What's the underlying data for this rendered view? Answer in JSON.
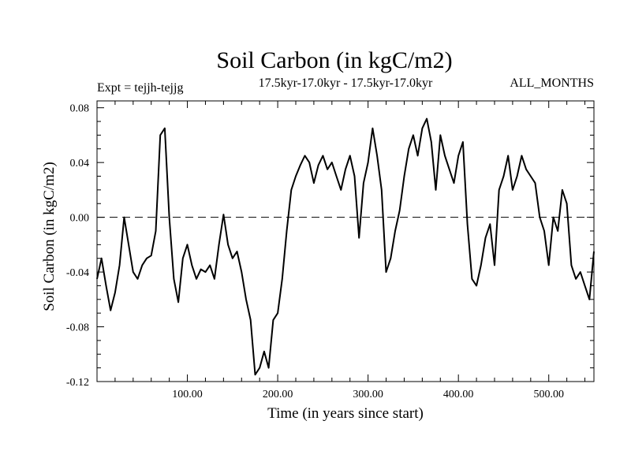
{
  "chart_data": {
    "type": "line",
    "title": "Soil Carbon (in kgC/m2)",
    "subtitle_left": "Expt = tejjh-tejjg",
    "subtitle_center": "17.5kyr-17.0kyr - 17.5kyr-17.0kyr",
    "subtitle_right": "ALL_MONTHS",
    "xlabel": "Time (in years since start)",
    "ylabel": "Soil Carbon (in kgC/m2)",
    "xlim": [
      0,
      550
    ],
    "ylim": [
      -0.12,
      0.085
    ],
    "x_ticks": [
      100,
      200,
      300,
      400,
      500
    ],
    "x_tick_labels": [
      "100.00",
      "200.00",
      "300.00",
      "400.00",
      "500.00"
    ],
    "y_ticks": [
      -0.12,
      -0.08,
      -0.04,
      0.0,
      0.04,
      0.08
    ],
    "y_tick_labels": [
      "-0.12",
      "-0.08",
      "-0.04",
      "0.00",
      "0.04",
      "0.08"
    ],
    "reference_line": {
      "y": 0.0,
      "style": "dashed"
    },
    "grid": false,
    "series": [
      {
        "x": [
          0,
          5,
          10,
          15,
          20,
          25,
          30,
          35,
          40,
          45,
          50,
          55,
          60,
          65,
          70,
          75,
          80,
          85,
          90,
          95,
          100,
          105,
          110,
          115,
          120,
          125,
          130,
          135,
          140,
          145,
          150,
          155,
          160,
          165,
          170,
          175,
          180,
          185,
          190,
          195,
          200,
          205,
          210,
          215,
          220,
          225,
          230,
          235,
          240,
          245,
          250,
          255,
          260,
          265,
          270,
          275,
          280,
          285,
          290,
          295,
          300,
          305,
          310,
          315,
          320,
          325,
          330,
          335,
          340,
          345,
          350,
          355,
          360,
          365,
          370,
          375,
          380,
          385,
          390,
          395,
          400,
          405,
          410,
          415,
          420,
          425,
          430,
          435,
          440,
          445,
          450,
          455,
          460,
          465,
          470,
          475,
          480,
          485,
          490,
          495,
          500,
          505,
          510,
          515,
          520,
          525,
          530,
          535,
          540,
          545,
          550
        ],
        "y": [
          -0.045,
          -0.03,
          -0.05,
          -0.068,
          -0.055,
          -0.035,
          0.0,
          -0.02,
          -0.04,
          -0.045,
          -0.035,
          -0.03,
          -0.028,
          -0.01,
          0.06,
          0.065,
          0.0,
          -0.045,
          -0.062,
          -0.03,
          -0.02,
          -0.035,
          -0.045,
          -0.038,
          -0.04,
          -0.035,
          -0.045,
          -0.02,
          0.002,
          -0.02,
          -0.03,
          -0.025,
          -0.04,
          -0.06,
          -0.075,
          -0.115,
          -0.11,
          -0.098,
          -0.11,
          -0.075,
          -0.07,
          -0.045,
          -0.01,
          0.02,
          0.03,
          0.038,
          0.045,
          0.04,
          0.025,
          0.038,
          0.045,
          0.035,
          0.04,
          0.03,
          0.02,
          0.035,
          0.045,
          0.03,
          -0.015,
          0.025,
          0.04,
          0.065,
          0.045,
          0.02,
          -0.04,
          -0.03,
          -0.01,
          0.005,
          0.03,
          0.05,
          0.06,
          0.045,
          0.065,
          0.072,
          0.055,
          0.02,
          0.06,
          0.045,
          0.035,
          0.025,
          0.045,
          0.055,
          -0.005,
          -0.045,
          -0.05,
          -0.035,
          -0.015,
          -0.005,
          -0.035,
          0.02,
          0.03,
          0.045,
          0.02,
          0.03,
          0.045,
          0.035,
          0.03,
          0.025,
          0.0,
          -0.01,
          -0.035,
          0.0,
          -0.01,
          0.02,
          0.01,
          -0.035,
          -0.045,
          -0.04,
          -0.05,
          -0.06,
          -0.025
        ]
      }
    ]
  }
}
